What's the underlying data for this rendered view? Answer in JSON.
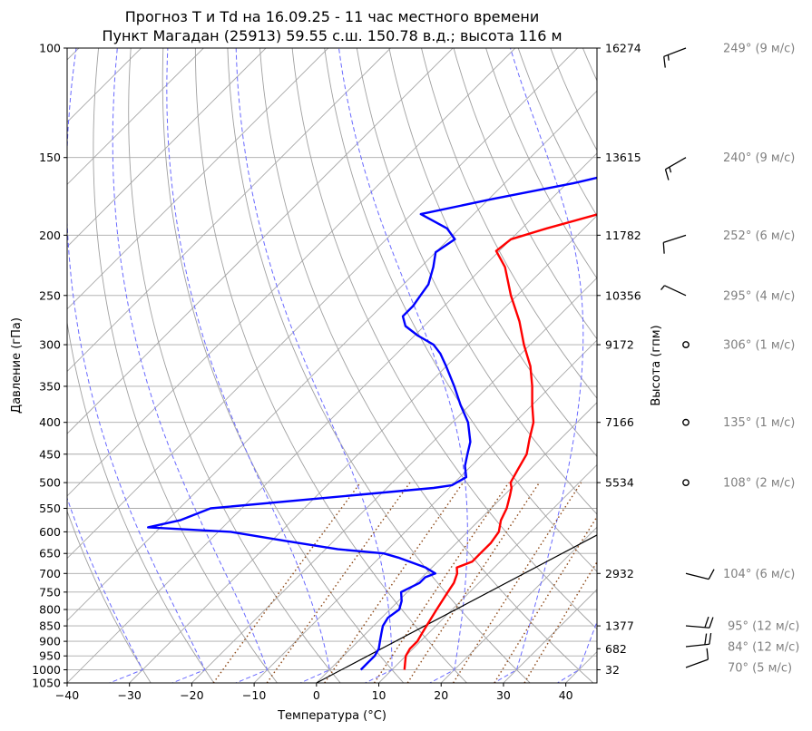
{
  "chart_data": {
    "type": "line",
    "title": "Прогноз T и Td на 16.09.25 - 11 час местного времени",
    "subtitle": "Пункт Магадан (25913) 59.55 с.ш. 150.78 в.д.; высота 116 м",
    "xlabel": "Температура (°C)",
    "ylabel": "Давление (гПа)",
    "ylabel_right": "Высота (гпм)",
    "xlim": [
      -40,
      45
    ],
    "ylim": [
      1050,
      100
    ],
    "y_scale": "log",
    "x_ticks": [
      "−40",
      "−30",
      "−20",
      "−10",
      "0",
      "10",
      "20",
      "30",
      "40"
    ],
    "y_ticks": [
      "100",
      "150",
      "200",
      "250",
      "300",
      "350",
      "400",
      "450",
      "500",
      "550",
      "600",
      "650",
      "700",
      "750",
      "800",
      "850",
      "900",
      "950",
      "1000",
      "1050"
    ],
    "height_ticks": [
      {
        "p": 100,
        "label": "16274"
      },
      {
        "p": 150,
        "label": "13615"
      },
      {
        "p": 200,
        "label": "11782"
      },
      {
        "p": 250,
        "label": "10356"
      },
      {
        "p": 300,
        "label": "9172"
      },
      {
        "p": 400,
        "label": "7166"
      },
      {
        "p": 500,
        "label": "5534"
      },
      {
        "p": 700,
        "label": "2932"
      },
      {
        "p": 850,
        "label": "1377"
      },
      {
        "p": 925,
        "label": "682"
      },
      {
        "p": 1000,
        "label": "32"
      }
    ],
    "series": [
      {
        "kind": "temperature",
        "color": "#ff0000",
        "points": [
          [
            1000,
            12.0
          ],
          [
            975,
            11.0
          ],
          [
            950,
            10.0
          ],
          [
            925,
            9.5
          ],
          [
            900,
            9.5
          ],
          [
            875,
            9.0
          ],
          [
            850,
            8.5
          ],
          [
            825,
            8.0
          ],
          [
            800,
            7.5
          ],
          [
            775,
            7.0
          ],
          [
            750,
            6.5
          ],
          [
            725,
            6.0
          ],
          [
            700,
            5.0
          ],
          [
            685,
            4.0
          ],
          [
            670,
            5.5
          ],
          [
            650,
            5.5
          ],
          [
            625,
            5.5
          ],
          [
            600,
            5.0
          ],
          [
            575,
            3.5
          ],
          [
            550,
            2.5
          ],
          [
            525,
            1.0
          ],
          [
            510,
            0.0
          ],
          [
            500,
            -1.0
          ],
          [
            475,
            -2.0
          ],
          [
            450,
            -3.0
          ],
          [
            425,
            -5.0
          ],
          [
            400,
            -7.0
          ],
          [
            375,
            -10.0
          ],
          [
            350,
            -13.0
          ],
          [
            325,
            -16.5
          ],
          [
            300,
            -21.0
          ],
          [
            275,
            -25.5
          ],
          [
            250,
            -31.0
          ],
          [
            225,
            -36.5
          ],
          [
            212,
            -40.5
          ],
          [
            203,
            -40.0
          ],
          [
            195,
            -36.0
          ],
          [
            185,
            -30.0
          ],
          [
            175,
            -25.5
          ],
          [
            165,
            -24.5
          ],
          [
            155,
            -24.0
          ],
          [
            145,
            -23.0
          ],
          [
            135,
            -24.0
          ],
          [
            125,
            -24.5
          ],
          [
            115,
            -26.0
          ],
          [
            105,
            -27.0
          ],
          [
            100,
            -28.0
          ]
        ]
      },
      {
        "kind": "dewpoint",
        "color": "#0000ff",
        "points": [
          [
            1000,
            5.0
          ],
          [
            975,
            5.0
          ],
          [
            950,
            5.0
          ],
          [
            925,
            4.5
          ],
          [
            900,
            3.5
          ],
          [
            875,
            2.5
          ],
          [
            850,
            1.5
          ],
          [
            825,
            1.0
          ],
          [
            800,
            1.5
          ],
          [
            775,
            0.5
          ],
          [
            750,
            -1.0
          ],
          [
            725,
            0.5
          ],
          [
            710,
            0.5
          ],
          [
            700,
            1.5
          ],
          [
            685,
            -1.0
          ],
          [
            660,
            -7.0
          ],
          [
            650,
            -10.0
          ],
          [
            640,
            -18.0
          ],
          [
            620,
            -28.0
          ],
          [
            600,
            -38.0
          ],
          [
            590,
            -52.0
          ],
          [
            575,
            -48.0
          ],
          [
            550,
            -45.0
          ],
          [
            510,
            -12.5
          ],
          [
            505,
            -10.0
          ],
          [
            490,
            -9.0
          ],
          [
            470,
            -11.0
          ],
          [
            450,
            -12.5
          ],
          [
            430,
            -14.0
          ],
          [
            400,
            -17.5
          ],
          [
            375,
            -21.5
          ],
          [
            350,
            -25.5
          ],
          [
            325,
            -30.0
          ],
          [
            310,
            -33.0
          ],
          [
            300,
            -35.5
          ],
          [
            290,
            -39.5
          ],
          [
            280,
            -43.0
          ],
          [
            270,
            -45.0
          ],
          [
            260,
            -45.0
          ],
          [
            250,
            -45.5
          ],
          [
            240,
            -46.0
          ],
          [
            225,
            -48.0
          ],
          [
            213,
            -50.0
          ],
          [
            203,
            -49.0
          ],
          [
            195,
            -52.0
          ],
          [
            185,
            -58.5
          ],
          [
            175,
            -49.5
          ],
          [
            165,
            -39.0
          ],
          [
            155,
            -30.0
          ],
          [
            145,
            -30.5
          ],
          [
            135,
            -33.5
          ],
          [
            125,
            -38.0
          ],
          [
            115,
            -40.5
          ],
          [
            105,
            -43.0
          ],
          [
            100,
            -45.0
          ]
        ]
      }
    ],
    "parcel": {
      "kind": "parcel-line",
      "color": "#000000",
      "points": [
        [
          1050,
          0
        ],
        [
          375,
          40
        ]
      ]
    },
    "isotherms_skew_degrees": 45,
    "background_lines": {
      "dry_adiabats_color": "#a0a0a0",
      "moist_adiabats_color": "#6a6aff",
      "mixing_ratio_color": "#8b4513"
    },
    "wind": [
      {
        "p": 100,
        "dir": 249,
        "speed": 9,
        "label": "249° (9 м/с)"
      },
      {
        "p": 150,
        "dir": 240,
        "speed": 9,
        "label": "240° (9 м/с)"
      },
      {
        "p": 200,
        "dir": 252,
        "speed": 6,
        "label": "252° (6 м/с)"
      },
      {
        "p": 250,
        "dir": 295,
        "speed": 4,
        "label": "295° (4 м/с)"
      },
      {
        "p": 300,
        "dir": 306,
        "speed": 1,
        "label": "306° (1 м/с)"
      },
      {
        "p": 400,
        "dir": 135,
        "speed": 1,
        "label": "135° (1 м/с)"
      },
      {
        "p": 500,
        "dir": 108,
        "speed": 2,
        "label": "108° (2 м/с)"
      },
      {
        "p": 700,
        "dir": 104,
        "speed": 6,
        "label": "104° (6 м/с)"
      },
      {
        "p": 850,
        "dir": 95,
        "speed": 12,
        "label": "95° (12 м/с)"
      },
      {
        "p": 925,
        "dir": 84,
        "speed": 12,
        "label": "84° (12 м/с)"
      },
      {
        "p": 1000,
        "dir": 70,
        "speed": 5,
        "label": "70° (5 м/с)"
      }
    ]
  }
}
